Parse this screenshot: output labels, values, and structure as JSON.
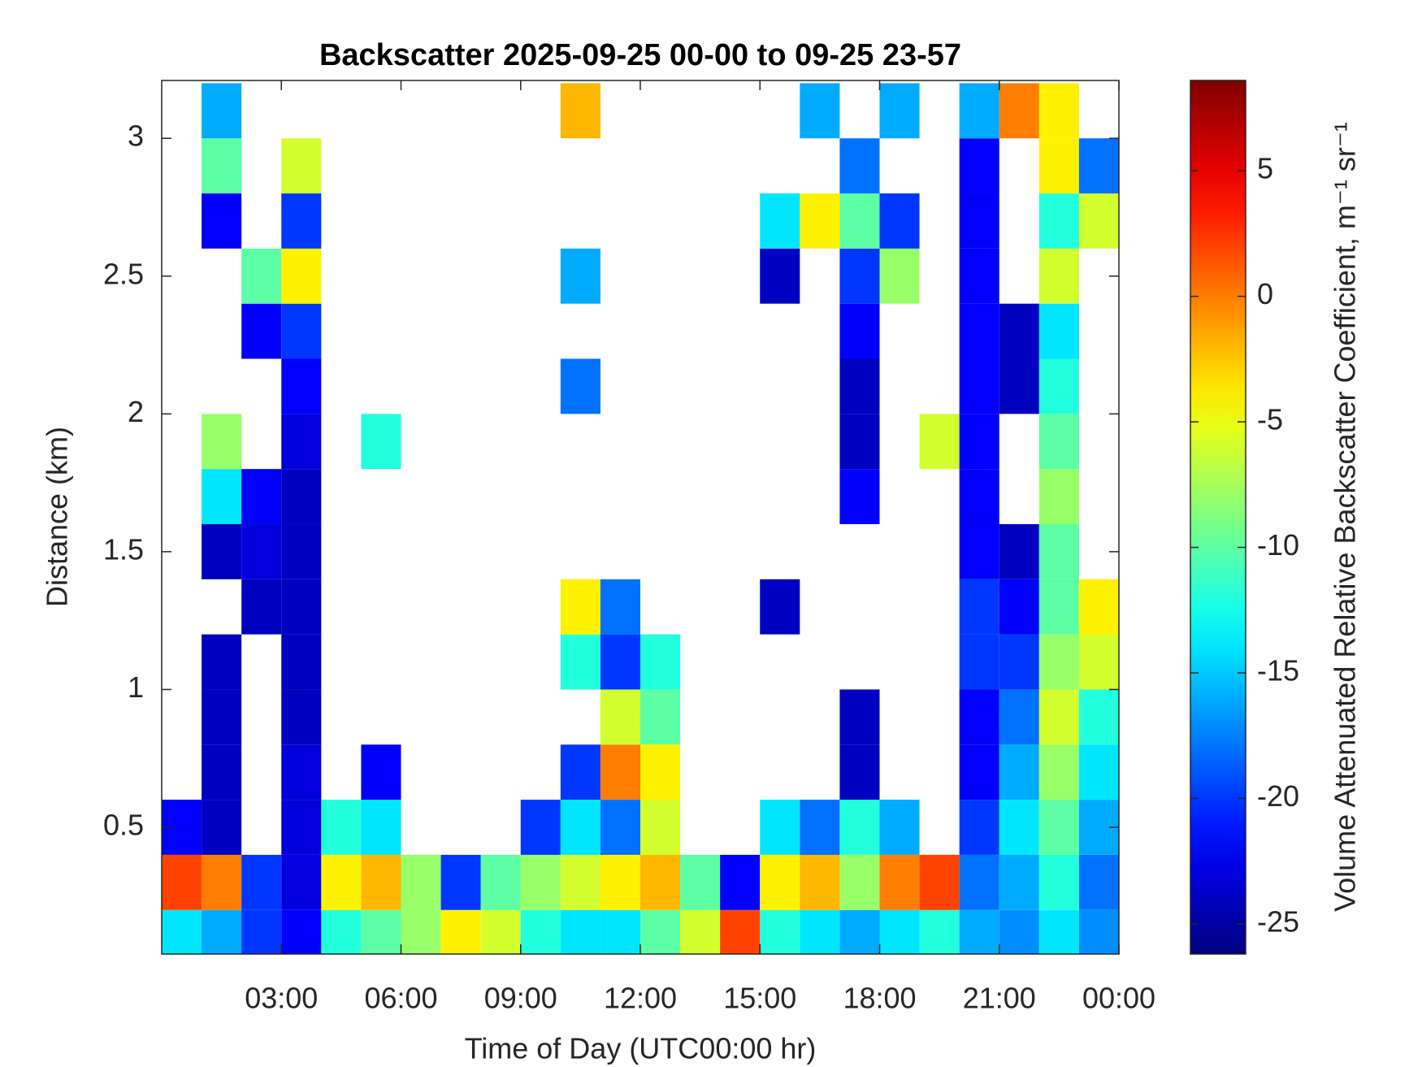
{
  "chart_data": {
    "type": "heatmap",
    "title": "Backscatter 2025-09-25 00-00 to 09-25 23-57",
    "x_label": "Time of Day (UTC00:00 hr)",
    "y_label": "Distance (km)",
    "colorbar_label": "Volume Attenuated Relative Backscatter Coefficient, m⁻¹ sr⁻¹",
    "colormap": "jet",
    "xlim": [
      0,
      24
    ],
    "ylim": [
      0.04,
      3.21
    ],
    "clim": [
      -26.2,
      8.6
    ],
    "xticks": [
      {
        "value": 3,
        "label": "03:00"
      },
      {
        "value": 6,
        "label": "06:00"
      },
      {
        "value": 9,
        "label": "09:00"
      },
      {
        "value": 12,
        "label": "12:00"
      },
      {
        "value": 15,
        "label": "15:00"
      },
      {
        "value": 18,
        "label": "18:00"
      },
      {
        "value": 21,
        "label": "21:00"
      },
      {
        "value": 24,
        "label": "00:00"
      }
    ],
    "yticks": [
      0.5,
      1,
      1.5,
      2,
      2.5,
      3
    ],
    "cticks": [
      -25,
      -20,
      -15,
      -10,
      -5,
      0,
      5
    ],
    "x_bins": [
      0,
      1,
      2,
      3,
      4,
      5,
      6,
      7,
      8,
      9,
      10,
      11,
      12,
      13,
      14,
      15,
      16,
      17,
      18,
      19,
      20,
      21,
      22,
      23,
      24
    ],
    "y_bins": [
      0,
      0.2,
      0.4,
      0.6,
      0.8,
      1.0,
      1.2,
      1.4,
      1.6,
      1.8,
      2.0,
      2.2,
      2.4,
      2.6,
      2.8,
      3.0,
      3.2
    ],
    "z": [
      [
        -14,
        -16,
        -20,
        -22,
        -12,
        -10,
        -8,
        -4,
        -6,
        -12,
        -14,
        -14,
        -10,
        -6,
        2,
        -12,
        -14,
        -16,
        -14,
        -12,
        -16,
        -17,
        -14,
        -17
      ],
      [
        2,
        0,
        -20,
        -23,
        -4,
        -2,
        -8,
        -20,
        -10,
        -8,
        -6,
        -4,
        -2,
        -10,
        -22,
        -4,
        -2,
        -8,
        0,
        2,
        -18,
        -16,
        -12,
        -18
      ],
      [
        -22,
        -24,
        null,
        -23,
        -12,
        -14,
        null,
        null,
        null,
        -20,
        -14,
        -18,
        -6,
        null,
        null,
        -14,
        -18,
        -12,
        -16,
        null,
        -20,
        -14,
        -10,
        -16
      ],
      [
        null,
        -24,
        null,
        -23,
        null,
        -22,
        null,
        null,
        null,
        null,
        -20,
        0,
        -4,
        null,
        null,
        null,
        null,
        -24,
        null,
        null,
        -22,
        -16,
        -8,
        -14
      ],
      [
        null,
        -24,
        null,
        -24,
        null,
        null,
        null,
        null,
        null,
        null,
        null,
        -6,
        -10,
        null,
        null,
        null,
        null,
        -24,
        null,
        null,
        -22,
        -18,
        -6,
        -12
      ],
      [
        null,
        -24,
        null,
        -24,
        null,
        null,
        null,
        null,
        null,
        null,
        -12,
        -20,
        -12,
        null,
        null,
        null,
        null,
        null,
        null,
        null,
        -20,
        -20,
        -8,
        -6
      ],
      [
        null,
        null,
        -24,
        -24,
        null,
        null,
        null,
        null,
        null,
        null,
        -4,
        -18,
        null,
        null,
        null,
        -24,
        null,
        null,
        null,
        null,
        -20,
        -22,
        -10,
        -4
      ],
      [
        null,
        -24,
        -23,
        -24,
        null,
        null,
        null,
        null,
        null,
        null,
        null,
        null,
        null,
        null,
        null,
        null,
        null,
        null,
        null,
        null,
        -22,
        -24,
        -10,
        null
      ],
      [
        null,
        -14,
        -22,
        -24,
        null,
        null,
        null,
        null,
        null,
        null,
        null,
        null,
        null,
        null,
        null,
        null,
        null,
        -22,
        null,
        null,
        -22,
        null,
        -8,
        null
      ],
      [
        null,
        -8,
        null,
        -23,
        null,
        -12,
        null,
        null,
        null,
        null,
        null,
        null,
        null,
        null,
        null,
        null,
        null,
        -24,
        null,
        -6,
        -22,
        null,
        -10,
        null
      ],
      [
        null,
        null,
        null,
        -22,
        null,
        null,
        null,
        null,
        null,
        null,
        -18,
        null,
        null,
        null,
        null,
        null,
        null,
        -24,
        null,
        null,
        -22,
        -24,
        -12,
        null
      ],
      [
        null,
        null,
        -22,
        -20,
        null,
        null,
        null,
        null,
        null,
        null,
        null,
        null,
        null,
        null,
        null,
        null,
        null,
        -22,
        null,
        null,
        -22,
        -24,
        -14,
        null
      ],
      [
        null,
        null,
        -10,
        -4,
        null,
        null,
        null,
        null,
        null,
        null,
        -16,
        null,
        null,
        null,
        null,
        -24,
        null,
        -20,
        -8,
        null,
        -22,
        null,
        -6,
        null
      ],
      [
        null,
        -22,
        null,
        -20,
        null,
        null,
        null,
        null,
        null,
        null,
        null,
        null,
        null,
        null,
        null,
        -14,
        -4,
        -10,
        -20,
        null,
        -22,
        null,
        -12,
        -6
      ],
      [
        null,
        -10,
        null,
        -6,
        null,
        null,
        null,
        null,
        null,
        null,
        null,
        null,
        null,
        null,
        null,
        null,
        null,
        -18,
        null,
        null,
        -22,
        null,
        -4,
        -18
      ],
      [
        null,
        -16,
        null,
        null,
        null,
        null,
        null,
        null,
        null,
        null,
        -2,
        null,
        null,
        null,
        null,
        null,
        -16,
        null,
        -16,
        null,
        -16,
        0,
        -4,
        null
      ]
    ]
  }
}
